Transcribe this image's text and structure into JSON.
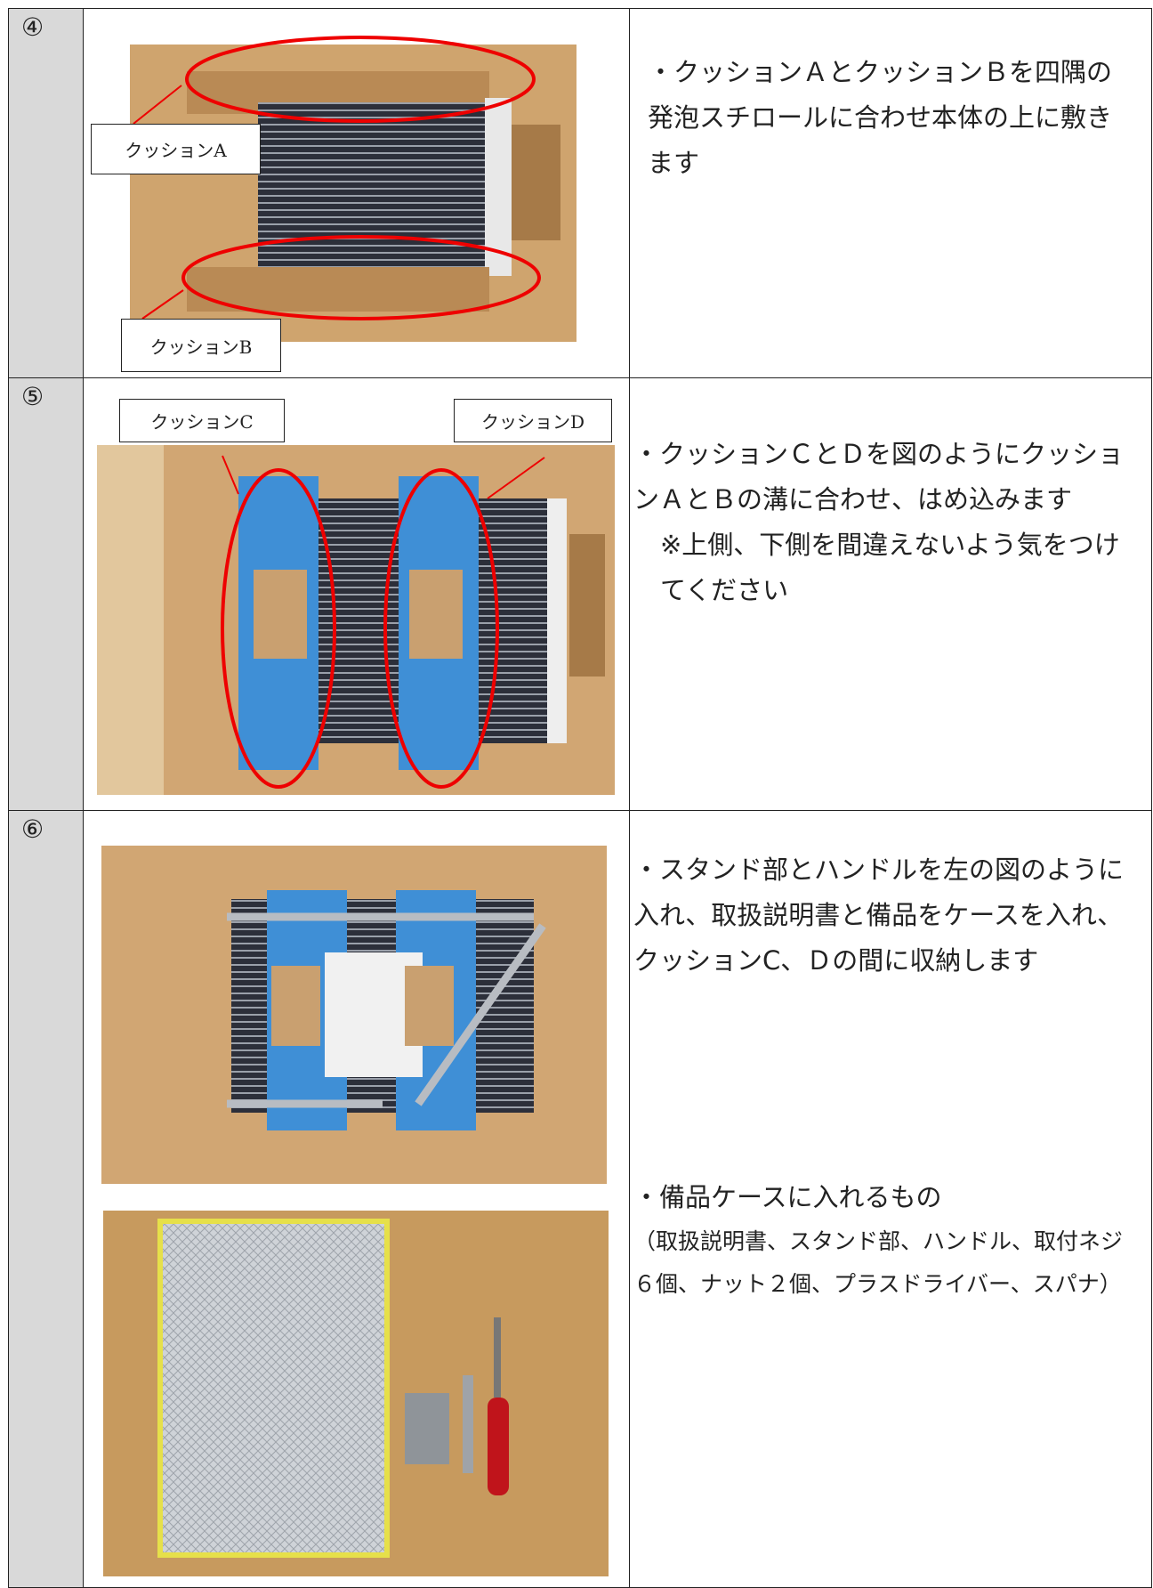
{
  "table": {
    "rows": [
      {
        "step": "④",
        "callouts": [
          "クッションA",
          "クッションB"
        ],
        "text": [
          "・クッションＡとクッションＢを四隅の発泡スチロールに合わせ本体の上に敷きます"
        ]
      },
      {
        "step": "⑤",
        "callouts": [
          "クッションC",
          "クッションD"
        ],
        "text": [
          "・クッションＣとＤを図のようにクッションＡとＢの溝に合わせ、はめ込みます",
          "※上側、下側を間違えないよう気をつけてください"
        ]
      },
      {
        "step": "⑥",
        "text": [
          "・スタンド部とハンドルを左の図のように入れ、取扱説明書と備品をケースを入れ、クッションC、Ｄの間に収納します",
          "・備品ケースに入れるもの",
          "（取扱説明書、スタンド部、ハンドル、取付ネジ６個、ナット２個、プラスドライバー、スパナ）"
        ]
      }
    ]
  }
}
